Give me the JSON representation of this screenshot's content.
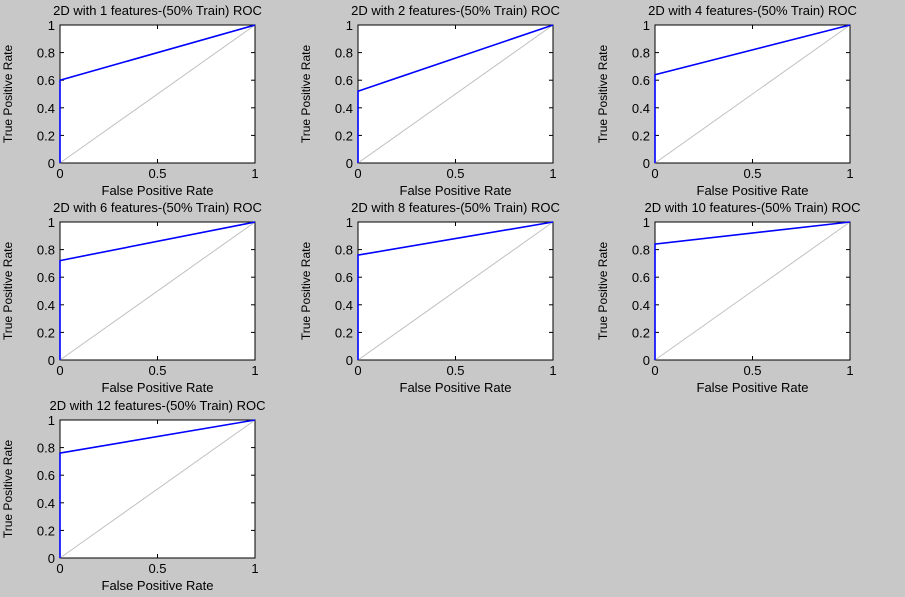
{
  "figure": {
    "background": "#c8c8c8"
  },
  "chart_data": [
    {
      "type": "line",
      "title": "2D with 1 features-(50% Train) ROC",
      "xlabel": "False Positive Rate",
      "ylabel": "True Positive Rate",
      "xlim": [
        0,
        1
      ],
      "ylim": [
        0,
        1
      ],
      "xticks": [
        "0",
        "0.5",
        "1"
      ],
      "yticks": [
        "0",
        "0.2",
        "0.4",
        "0.6",
        "0.8",
        "1"
      ],
      "grid": false,
      "series": [
        {
          "color": "#0000ff",
          "x": [
            0,
            0,
            1
          ],
          "y": [
            0,
            0.6,
            1
          ]
        },
        {
          "color": "#c0c0c0",
          "x": [
            0,
            1
          ],
          "y": [
            0,
            1
          ]
        }
      ]
    },
    {
      "type": "line",
      "title": "2D with 2 features-(50% Train) ROC",
      "xlabel": "False Positive Rate",
      "ylabel": "True Positive Rate",
      "xlim": [
        0,
        1
      ],
      "ylim": [
        0,
        1
      ],
      "xticks": [
        "0",
        "0.5",
        "1"
      ],
      "yticks": [
        "0",
        "0.2",
        "0.4",
        "0.6",
        "0.8",
        "1"
      ],
      "grid": false,
      "series": [
        {
          "color": "#0000ff",
          "x": [
            0,
            0,
            1
          ],
          "y": [
            0,
            0.52,
            1
          ]
        },
        {
          "color": "#c0c0c0",
          "x": [
            0,
            1
          ],
          "y": [
            0,
            1
          ]
        }
      ]
    },
    {
      "type": "line",
      "title": "2D with 4 features-(50% Train) ROC",
      "xlabel": "False Positive Rate",
      "ylabel": "True Positive Rate",
      "xlim": [
        0,
        1
      ],
      "ylim": [
        0,
        1
      ],
      "xticks": [
        "0",
        "0.5",
        "1"
      ],
      "yticks": [
        "0",
        "0.2",
        "0.4",
        "0.6",
        "0.8",
        "1"
      ],
      "grid": false,
      "series": [
        {
          "color": "#0000ff",
          "x": [
            0,
            0,
            1
          ],
          "y": [
            0,
            0.64,
            1
          ]
        },
        {
          "color": "#c0c0c0",
          "x": [
            0,
            1
          ],
          "y": [
            0,
            1
          ]
        }
      ]
    },
    {
      "type": "line",
      "title": "2D with 6 features-(50% Train) ROC",
      "xlabel": "False Positive Rate",
      "ylabel": "True Positive Rate",
      "xlim": [
        0,
        1
      ],
      "ylim": [
        0,
        1
      ],
      "xticks": [
        "0",
        "0.5",
        "1"
      ],
      "yticks": [
        "0",
        "0.2",
        "0.4",
        "0.6",
        "0.8",
        "1"
      ],
      "grid": false,
      "series": [
        {
          "color": "#0000ff",
          "x": [
            0,
            0,
            1
          ],
          "y": [
            0,
            0.72,
            1
          ]
        },
        {
          "color": "#c0c0c0",
          "x": [
            0,
            1
          ],
          "y": [
            0,
            1
          ]
        }
      ]
    },
    {
      "type": "line",
      "title": "2D with 8 features-(50% Train) ROC",
      "xlabel": "False Positive Rate",
      "ylabel": "True Positive Rate",
      "xlim": [
        0,
        1
      ],
      "ylim": [
        0,
        1
      ],
      "xticks": [
        "0",
        "0.5",
        "1"
      ],
      "yticks": [
        "0",
        "0.2",
        "0.4",
        "0.6",
        "0.8",
        "1"
      ],
      "grid": false,
      "series": [
        {
          "color": "#0000ff",
          "x": [
            0,
            0,
            1
          ],
          "y": [
            0,
            0.76,
            1
          ]
        },
        {
          "color": "#c0c0c0",
          "x": [
            0,
            1
          ],
          "y": [
            0,
            1
          ]
        }
      ]
    },
    {
      "type": "line",
      "title": "2D with 10 features-(50% Train) ROC",
      "xlabel": "False Positive Rate",
      "ylabel": "True Positive Rate",
      "xlim": [
        0,
        1
      ],
      "ylim": [
        0,
        1
      ],
      "xticks": [
        "0",
        "0.5",
        "1"
      ],
      "yticks": [
        "0",
        "0.2",
        "0.4",
        "0.6",
        "0.8",
        "1"
      ],
      "grid": false,
      "series": [
        {
          "color": "#0000ff",
          "x": [
            0,
            0,
            1
          ],
          "y": [
            0,
            0.84,
            1
          ]
        },
        {
          "color": "#c0c0c0",
          "x": [
            0,
            1
          ],
          "y": [
            0,
            1
          ]
        }
      ]
    },
    {
      "type": "line",
      "title": "2D with 12 features-(50% Train) ROC",
      "xlabel": "False Positive Rate",
      "ylabel": "True Positive Rate",
      "xlim": [
        0,
        1
      ],
      "ylim": [
        0,
        1
      ],
      "xticks": [
        "0",
        "0.5",
        "1"
      ],
      "yticks": [
        "0",
        "0.2",
        "0.4",
        "0.6",
        "0.8",
        "1"
      ],
      "grid": false,
      "series": [
        {
          "color": "#0000ff",
          "x": [
            0,
            0,
            1
          ],
          "y": [
            0,
            0.76,
            1
          ]
        },
        {
          "color": "#c0c0c0",
          "x": [
            0,
            1
          ],
          "y": [
            0,
            1
          ]
        }
      ]
    }
  ]
}
